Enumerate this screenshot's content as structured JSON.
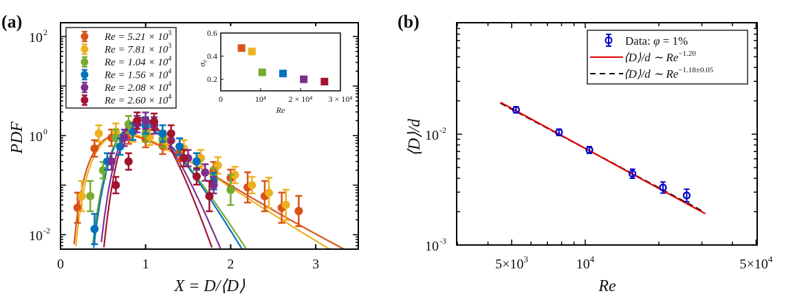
{
  "chart_data": [
    {
      "panel": "(a)",
      "type": "scatter",
      "title": "",
      "xlabel": "X = D/⟨D⟩",
      "ylabel": "PDF",
      "xscale": "linear",
      "yscale": "log",
      "xlim": [
        0,
        3.5
      ],
      "ylim": [
        0.005,
        200
      ],
      "xticks": [
        0,
        1,
        2,
        3
      ],
      "xtick_labels": [
        "0",
        "1",
        "2",
        "3"
      ],
      "yticks": [
        0.01,
        1,
        100
      ],
      "ytick_labels": [
        "10⁻²",
        "10⁰",
        "10²"
      ],
      "legend_position": "top-left",
      "series": [
        {
          "name": "Re = 5.21 × 10³",
          "label_main": "Re = 5.21 × 10",
          "label_exp": "3",
          "color": "#D95319",
          "mu": 0.05,
          "sigma": 0.47,
          "x": [
            0.2,
            0.4,
            0.6,
            0.8,
            1.0,
            1.2,
            1.4,
            1.6,
            1.8,
            2.0,
            2.2,
            2.4,
            2.6,
            2.8
          ],
          "y": [
            0.035,
            0.55,
            0.9,
            1.0,
            0.85,
            0.62,
            0.45,
            0.3,
            0.2,
            0.14,
            0.09,
            0.06,
            0.035,
            0.03
          ]
        },
        {
          "name": "Re = 7.81 × 10³",
          "label_main": "Re = 7.81 × 10",
          "label_exp": "3",
          "color": "#EDB120",
          "mu": 0.05,
          "sigma": 0.44,
          "x": [
            0.25,
            0.45,
            0.65,
            0.85,
            1.05,
            1.25,
            1.45,
            1.65,
            1.85,
            2.05,
            2.25,
            2.45,
            2.65
          ],
          "y": [
            0.06,
            1.1,
            1.2,
            1.1,
            0.95,
            0.75,
            0.55,
            0.35,
            0.25,
            0.16,
            0.1,
            0.07,
            0.04
          ]
        },
        {
          "name": "Re = 1.04 × 10⁴",
          "label_main": "Re = 1.04 × 10",
          "label_exp": "4",
          "color": "#77AC30",
          "mu": 0.0,
          "sigma": 0.26,
          "x": [
            0.35,
            0.5,
            0.65,
            0.8,
            1.0,
            1.2,
            1.4,
            1.6,
            1.8,
            2.0
          ],
          "y": [
            0.06,
            0.2,
            0.9,
            1.7,
            1.1,
            0.85,
            0.6,
            0.3,
            0.15,
            0.08
          ]
        },
        {
          "name": "Re = 1.56 × 10⁴",
          "label_main": "Re = 1.56 × 10",
          "label_exp": "4",
          "color": "#0072BD",
          "mu": 0.0,
          "sigma": 0.25,
          "x": [
            0.4,
            0.55,
            0.7,
            0.85,
            1.0,
            1.2,
            1.4,
            1.6,
            1.8
          ],
          "y": [
            0.013,
            0.3,
            0.6,
            1.2,
            1.6,
            1.1,
            0.6,
            0.3,
            0.12
          ]
        },
        {
          "name": "Re = 2.08 × 10⁴",
          "label_main": "Re = 2.08 × 10",
          "label_exp": "4",
          "color": "#7E2F8E",
          "mu": 0.0,
          "sigma": 0.2,
          "x": [
            0.6,
            0.75,
            0.9,
            1.0,
            1.1,
            1.3,
            1.5,
            1.7,
            1.8
          ],
          "y": [
            0.3,
            0.9,
            1.7,
            2.0,
            1.6,
            0.8,
            0.35,
            0.18,
            0.1
          ]
        },
        {
          "name": "Re = 2.60 × 10⁴",
          "label_main": "Re = 2.60 × 10",
          "label_exp": "4",
          "color": "#A2142F",
          "mu": 0.0,
          "sigma": 0.18,
          "x": [
            0.65,
            0.8,
            0.9,
            1.1,
            1.3,
            1.45,
            1.6,
            1.75
          ],
          "y": [
            0.1,
            0.3,
            2.0,
            1.9,
            1.1,
            0.35,
            0.15,
            0.06
          ]
        }
      ],
      "inset": {
        "type": "scatter",
        "xlabel": "Re",
        "ylabel": "σ₀",
        "xlim": [
          0,
          30000
        ],
        "ylim": [
          0.1,
          0.6
        ],
        "xtick_labels": [
          "0",
          "10⁴",
          "2 × 10⁴",
          "3 × 10⁴"
        ],
        "xticks": [
          0,
          10000,
          20000,
          30000
        ],
        "ytick_labels": [
          "0.2",
          "0.4",
          "0.6"
        ],
        "yticks": [
          0.2,
          0.4,
          0.6
        ],
        "x": [
          5210,
          7810,
          10400,
          15600,
          20800,
          26000
        ],
        "y": [
          0.47,
          0.44,
          0.26,
          0.25,
          0.2,
          0.18
        ]
      }
    },
    {
      "panel": "(b)",
      "type": "scatter",
      "title": "",
      "xlabel": "Re",
      "ylabel": "⟨D⟩/d",
      "xscale": "log",
      "yscale": "log",
      "xlim": [
        3000,
        60000
      ],
      "ylim": [
        0.001,
        0.1
      ],
      "xticks": [
        5000,
        10000,
        50000
      ],
      "xtick_labels": [
        "5×10³",
        "10⁴",
        "5×10⁴"
      ],
      "yticks": [
        0.001,
        0.01
      ],
      "ytick_labels": [
        "10⁻³",
        "10⁻²"
      ],
      "legend_position": "top-right",
      "legend": [
        {
          "label": "Data: φ = 1%",
          "style": "marker"
        },
        {
          "label": "⟨D⟩/d ~ Re^−1.20",
          "style": "solid-red"
        },
        {
          "label": "⟨D⟩/d ~ Re^−1.18±0.05",
          "style": "dashed-black"
        }
      ],
      "series": [
        {
          "name": "Data: φ = 1%",
          "color": "#0000CC",
          "x": [
            5210,
            7810,
            10400,
            15600,
            20800,
            26000
          ],
          "y": [
            0.0166,
            0.0104,
            0.0072,
            0.0044,
            0.0033,
            0.0028
          ],
          "err": [
            0.0006,
            0.0004,
            0.0003,
            0.0003,
            0.0003,
            0.0003
          ]
        },
        {
          "name": "⟨D⟩/d ~ Re^−1.20",
          "color": "#E00000",
          "exponent": -1.2,
          "x_range": [
            4500,
            31000
          ]
        },
        {
          "name": "⟨D⟩/d ~ Re^−1.18±0.05",
          "color": "#000000",
          "exponent": -1.18,
          "x_range": [
            4500,
            30000
          ]
        }
      ]
    }
  ],
  "panel_labels": {
    "a": "(a)",
    "b": "(b)"
  },
  "axis_titles": {
    "a_x": "X  =  D/⟨D⟩",
    "a_y": "PDF",
    "b_x": "Re",
    "b_y": "⟨D⟩/d",
    "inset_x": "Re",
    "inset_y": "σ₀"
  },
  "legend_b": {
    "data": "Data: ",
    "phi": "φ",
    "data_rest": " = 1%",
    "fit1": "⟨D⟩/d ∼ Re",
    "fit1_exp": "−1.20",
    "fit2": "⟨D⟩/d ∼ Re",
    "fit2_exp": "−1.18±0.05"
  }
}
